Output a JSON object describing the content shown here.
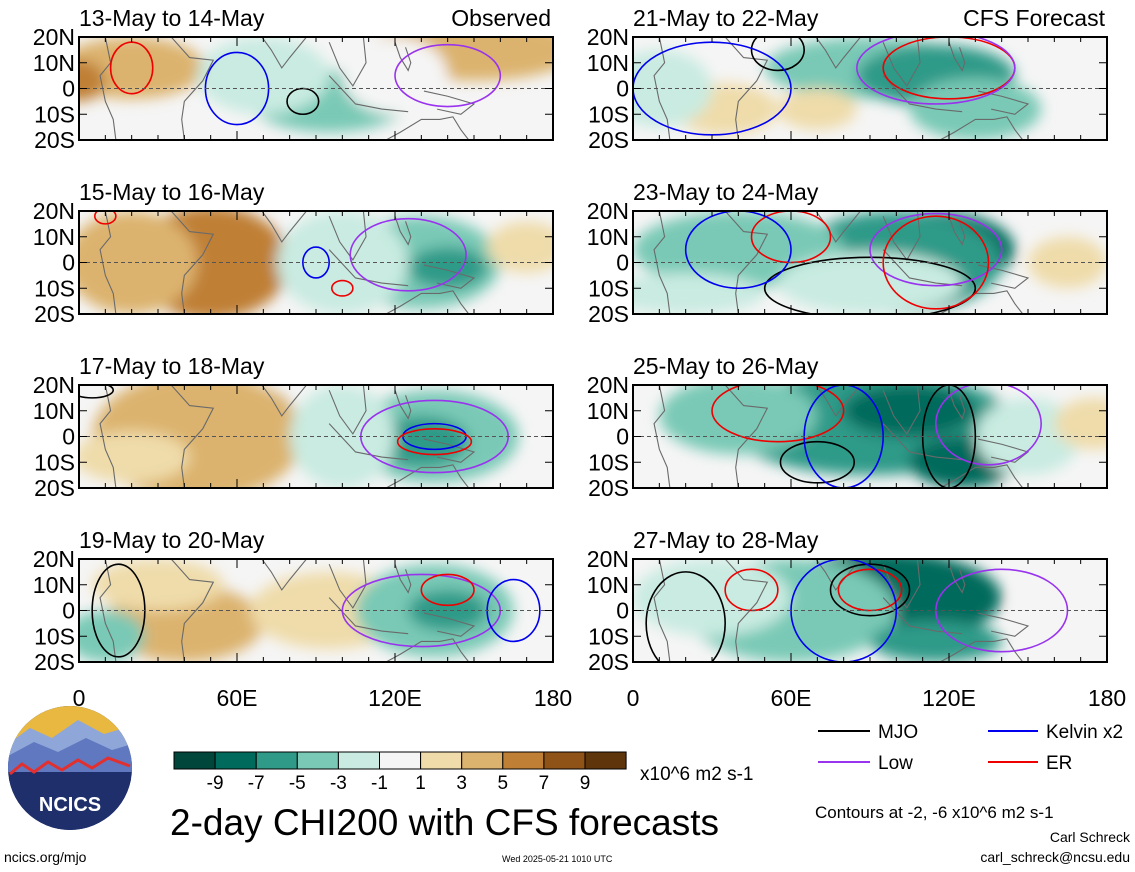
{
  "chart_data": {
    "type": "heatmap",
    "title": "2-day CHI200 with CFS forecasts",
    "x_tick_labels": [
      "0",
      "60E",
      "120E",
      "180"
    ],
    "y_tick_labels": [
      "20N",
      "10N",
      "0",
      "10S",
      "20S"
    ],
    "xlim": [
      0,
      180
    ],
    "ylim": [
      -20,
      20
    ],
    "colorbar": {
      "unit": "x10^6 m2 s-1",
      "tick_labels": [
        "-9",
        "-7",
        "-5",
        "-3",
        "-1",
        "1",
        "3",
        "5",
        "7",
        "9"
      ],
      "colors": [
        "#00463a",
        "#006b5c",
        "#2f9a88",
        "#79c9b6",
        "#c9ebe1",
        "#f5f5f5",
        "#efdcaa",
        "#dcb36e",
        "#bf7f34",
        "#8f5217",
        "#5f360b"
      ]
    },
    "panels": [
      {
        "label": "13-May to 14-May",
        "tag": "Observed",
        "column": "left",
        "row": 0
      },
      {
        "label": "15-May to 16-May",
        "tag": "",
        "column": "left",
        "row": 1
      },
      {
        "label": "17-May to 18-May",
        "tag": "",
        "column": "left",
        "row": 2
      },
      {
        "label": "19-May to 20-May",
        "tag": "",
        "column": "left",
        "row": 3
      },
      {
        "label": "21-May to 22-May",
        "tag": "CFS Forecast",
        "column": "right",
        "row": 0
      },
      {
        "label": "23-May to 24-May",
        "tag": "",
        "column": "right",
        "row": 1
      },
      {
        "label": "25-May to 26-May",
        "tag": "",
        "column": "right",
        "row": 2
      },
      {
        "label": "27-May to 28-May",
        "tag": "",
        "column": "right",
        "row": 3
      }
    ],
    "legend": {
      "placement": "bottom-right",
      "items": [
        {
          "name": "MJO",
          "color": "#000000"
        },
        {
          "name": "Kelvin x2",
          "color": "#0000ee"
        },
        {
          "name": "Low",
          "color": "#9933ee"
        },
        {
          "name": "ER",
          "color": "#ee0000"
        }
      ]
    },
    "contour_note": "Contours at -2, -6 x10^6 m2 s-1"
  },
  "logo": {
    "text": "NCICS"
  },
  "footer": {
    "url": "ncics.org/mjo",
    "timestamp": "Wed 2025-05-21 1010 UTC",
    "author": "Carl Schreck",
    "email": "carl_schreck@ncsu.edu"
  }
}
